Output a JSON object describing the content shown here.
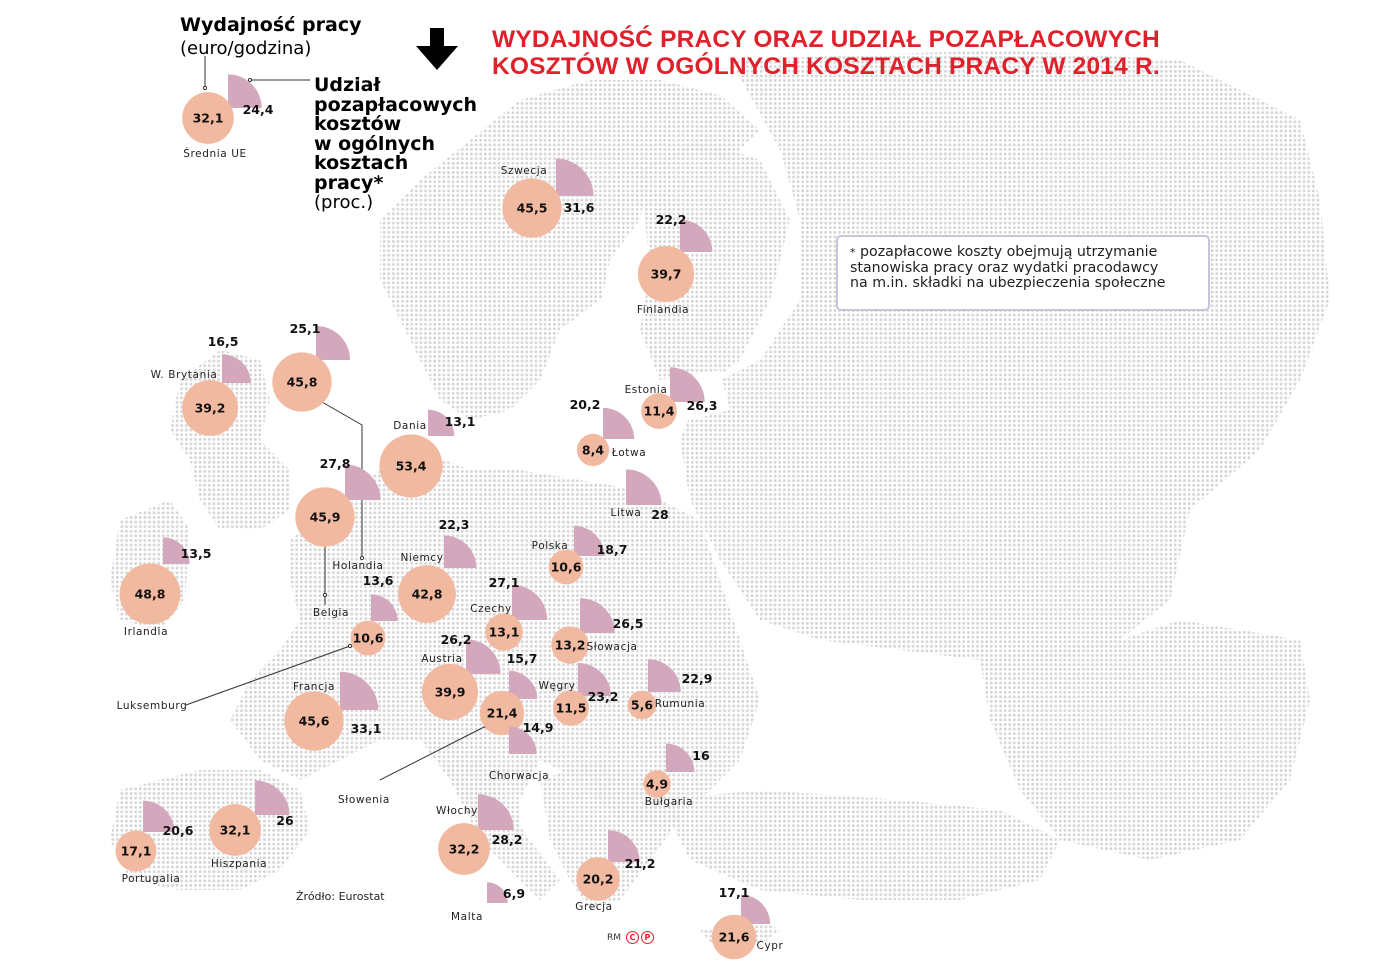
{
  "title": {
    "line1": "WYDAJNOŚĆ PRACY ORAZ UDZIAŁ POZAPŁACOWYCH",
    "line2": "KOSZTÓW W OGÓLNYCH KOSZTACH PRACY W 2014 R."
  },
  "legend": {
    "productivity_title": "Wydajność pracy",
    "productivity_unit": "(euro/godzina)",
    "share_title_lines": [
      "Udział",
      "pozapłacowych",
      "kosztów",
      "w ogólnych",
      "kosztach",
      "pracy*"
    ],
    "share_unit": "(proc.)",
    "example": {
      "name": "Średnia UE",
      "productivity": "32,1",
      "share": "24,4"
    }
  },
  "note": {
    "star": "*",
    "line1": "pozapłacowe koszty obejmują utrzymanie",
    "line2": "stanowiska pracy oraz wydatki pracodawcy",
    "line3": "na m.in. składki na ubezpieczenia społeczne"
  },
  "source": "Źródło: Eurostat",
  "credit": {
    "initials": "RM",
    "c_symbol": "C",
    "p_symbol": "P"
  },
  "colors": {
    "title_red": "#e0202a",
    "productivity_circle": "#f2b9a1",
    "share_wedge": "#d4a8bc",
    "map_dots": "#d8d8d8",
    "note_border": "#c8c4dc"
  },
  "icons": {
    "arrow": "arrow-down-icon"
  },
  "countries": [
    {
      "name": "Szwecja",
      "productivity": "45,5",
      "share": "31,6"
    },
    {
      "name": "Finlandia",
      "productivity": "39,7",
      "share": "22,2"
    },
    {
      "name": "W. Brytania",
      "productivity": "39,2",
      "share": "16,5"
    },
    {
      "name": "Holandia",
      "productivity": "45,8",
      "share": "25,1"
    },
    {
      "name": "Dania",
      "productivity": "53,4",
      "share": "13,1"
    },
    {
      "name": "Estonia",
      "productivity": "11,4",
      "share": "26,3"
    },
    {
      "name": "Łotwa",
      "productivity": "8,4",
      "share": "20,2"
    },
    {
      "name": "Litwa",
      "productivity": "",
      "share": "28"
    },
    {
      "name": "Belgia",
      "productivity": "45,9",
      "share": "27,8"
    },
    {
      "name": "Irlandia",
      "productivity": "48,8",
      "share": "13,5"
    },
    {
      "name": "Niemcy",
      "productivity": "42,8",
      "share": "22,3"
    },
    {
      "name": "Polska",
      "productivity": "10,6",
      "share": "18,7"
    },
    {
      "name": "Luksemburg",
      "productivity": "10,6",
      "share": "13,6"
    },
    {
      "name": "Czechy",
      "productivity": "13,1",
      "share": "27,1"
    },
    {
      "name": "Słowacja",
      "productivity": "13,2",
      "share": "26,5"
    },
    {
      "name": "Austria",
      "productivity": "39,9",
      "share": "26,2"
    },
    {
      "name": "Słowenia",
      "productivity": "21,4",
      "share": "15,7"
    },
    {
      "name": "Węgry",
      "productivity": "11,5",
      "share": "23,2"
    },
    {
      "name": "Rumunia",
      "productivity": "5,6",
      "share": "22,9"
    },
    {
      "name": "Francja",
      "productivity": "45,6",
      "share": "33,1"
    },
    {
      "name": "Chorwacja",
      "productivity": "",
      "share": "14,9"
    },
    {
      "name": "Bułgaria",
      "productivity": "4,9",
      "share": "16"
    },
    {
      "name": "Portugalia",
      "productivity": "17,1",
      "share": "20,6"
    },
    {
      "name": "Hiszpania",
      "productivity": "32,1",
      "share": "26"
    },
    {
      "name": "Włochy",
      "productivity": "32,2",
      "share": "28,2"
    },
    {
      "name": "Grecja",
      "productivity": "20,2",
      "share": "21,2"
    },
    {
      "name": "Malta",
      "productivity": "",
      "share": "6,9"
    },
    {
      "name": "Cypr",
      "productivity": "21,6",
      "share": "17,1"
    }
  ]
}
